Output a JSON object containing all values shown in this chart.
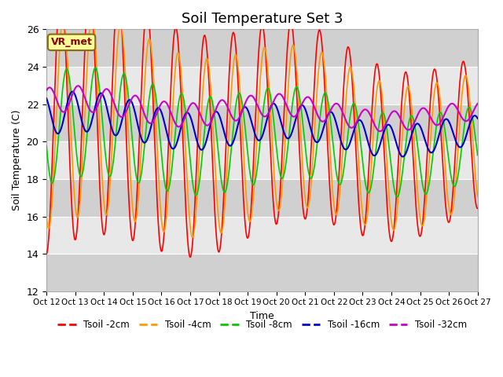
{
  "title": "Soil Temperature Set 3",
  "xlabel": "Time",
  "ylabel": "Soil Temperature (C)",
  "ylim": [
    12,
    26
  ],
  "annotation": "VR_met",
  "legend_labels": [
    "Tsoil -2cm",
    "Tsoil -4cm",
    "Tsoil -8cm",
    "Tsoil -16cm",
    "Tsoil -32cm"
  ],
  "line_colors": [
    "#ff0000",
    "#ff9900",
    "#00cc00",
    "#0000cc",
    "#cc00cc"
  ],
  "line_widths": [
    1.2,
    1.2,
    1.2,
    1.5,
    1.5
  ],
  "tick_labels": [
    "Oct 12",
    "Oct 13",
    "Oct 14",
    "Oct 15",
    "Oct 16",
    "Oct 17",
    "Oct 18",
    "Oct 19",
    "Oct 20",
    "Oct 21",
    "Oct 22",
    "Oct 23",
    "Oct 24",
    "Oct 25",
    "Oct 26",
    "Oct 27"
  ],
  "background_color": "#ffffff",
  "plot_bg_color": "#d8d8d8",
  "band_color_light": "#e8e8e8",
  "band_color_dark": "#d0d0d0",
  "title_fontsize": 13,
  "annotation_color": "#8B0000",
  "annotation_bg": "#ffff99",
  "annotation_edge": "#8B6914"
}
